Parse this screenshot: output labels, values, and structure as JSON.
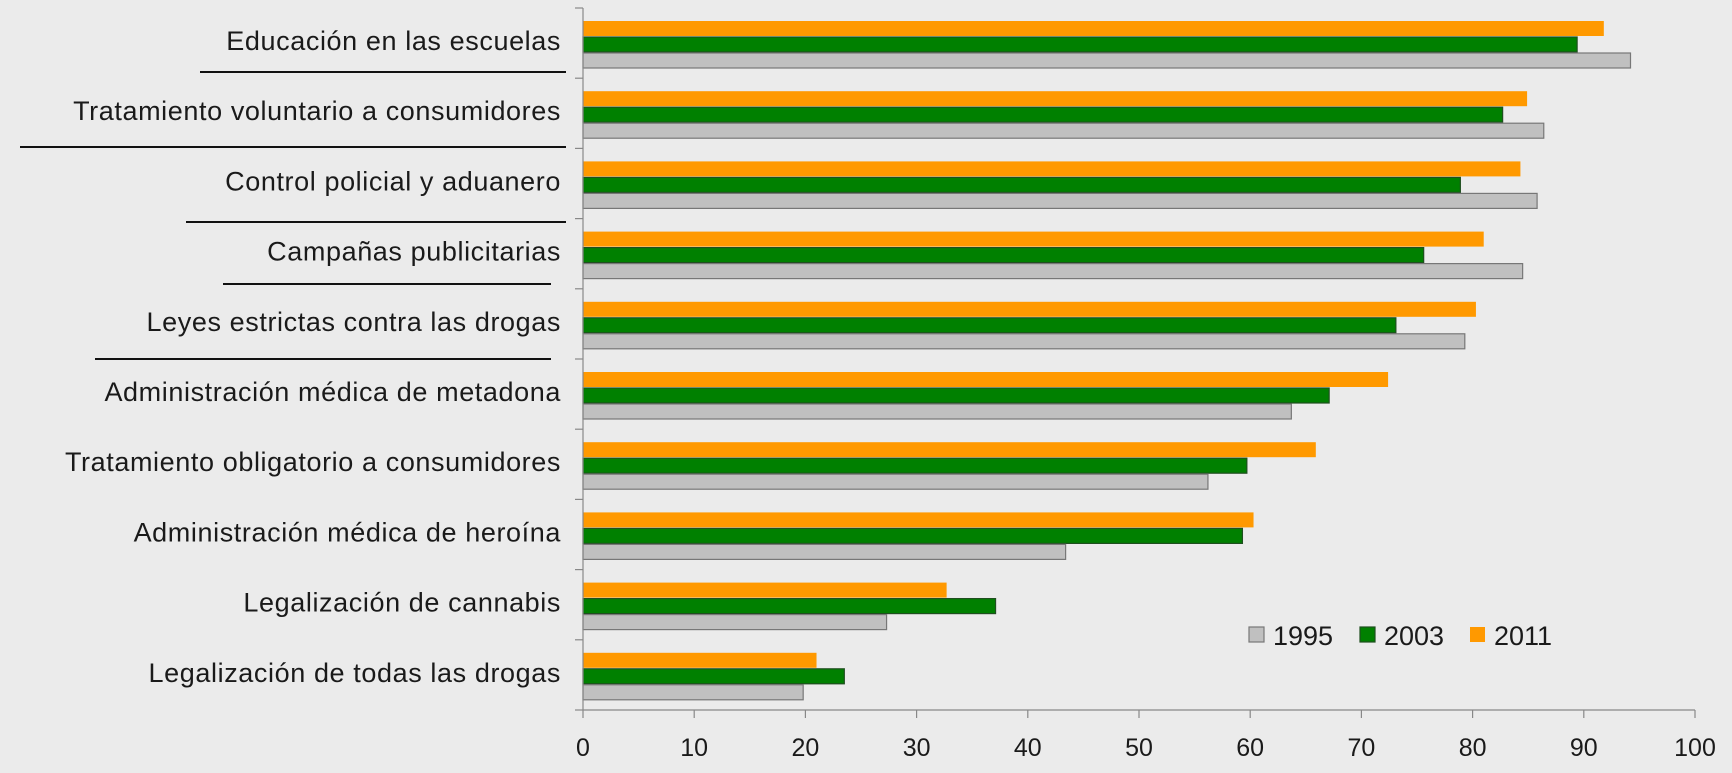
{
  "chart_data": {
    "type": "bar",
    "orientation": "horizontal",
    "categories": [
      "Educación en las escuelas",
      "Tratamiento voluntario a consumidores",
      "Control policial y aduanero",
      "Campañas publicitarias",
      "Leyes estrictas contra las drogas",
      "Administración médica de metadona",
      "Tratamiento obligatorio a consumidores",
      "Administración médica de heroína",
      "Legalización de cannabis",
      "Legalización de todas las drogas"
    ],
    "series": [
      {
        "name": "2011",
        "color": "#ff9900",
        "values": [
          91.8,
          84.9,
          84.3,
          81.0,
          80.3,
          72.4,
          65.9,
          60.3,
          32.7,
          21.0
        ]
      },
      {
        "name": "2003",
        "color": "#008000",
        "values": [
          89.4,
          82.7,
          78.9,
          75.6,
          73.1,
          67.1,
          59.7,
          59.3,
          37.1,
          23.5
        ]
      },
      {
        "name": "1995",
        "color": "#c0c0c0",
        "values": [
          94.2,
          86.4,
          85.8,
          84.5,
          79.3,
          63.7,
          56.2,
          43.4,
          27.3,
          19.8
        ]
      }
    ],
    "legend": [
      "1995",
      "2003",
      "2011"
    ],
    "legend_position": "bottom-right",
    "xlim": [
      0,
      100
    ],
    "xticks": [
      "0",
      "10",
      "20",
      "30",
      "40",
      "50",
      "60",
      "70",
      "80",
      "90",
      "100"
    ],
    "grid": false
  }
}
